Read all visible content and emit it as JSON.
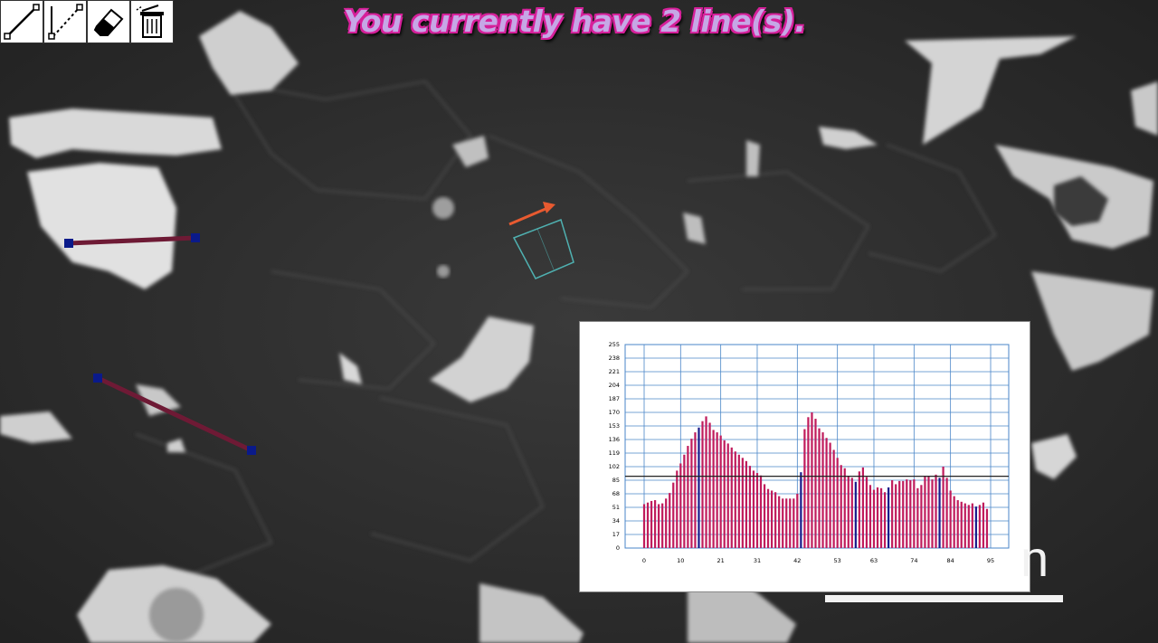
{
  "status_message": "You currently have 2 line(s).",
  "scale_bar": {
    "unit_text": "n"
  },
  "toolbar": {
    "tools": [
      {
        "name": "draw-line-tool",
        "icon": "line-icon"
      },
      {
        "name": "draw-dotted-line-tool",
        "icon": "dotted-line-icon"
      },
      {
        "name": "eraser-tool",
        "icon": "eraser-icon"
      },
      {
        "name": "delete-all-tool",
        "icon": "trash-icon"
      }
    ]
  },
  "colors": {
    "line": "#6e1a35",
    "endpoint": "#0a1a8a",
    "arrow": "#e85a30",
    "roi": "#4fb0b0",
    "bar_main": "#c01c5c",
    "bar_alt": "#1a1a8a",
    "grid": "#4a86c8"
  },
  "chart_data": {
    "type": "bar",
    "title": "",
    "xlabel": "",
    "ylabel": "",
    "ylim": [
      0,
      255
    ],
    "yticks": [
      0,
      17,
      34,
      51,
      68,
      85,
      102,
      119,
      136,
      153,
      170,
      187,
      204,
      221,
      238,
      255
    ],
    "xticks": [
      0,
      10,
      21,
      31,
      42,
      53,
      63,
      74,
      84,
      95
    ],
    "xlim": [
      0,
      95
    ],
    "threshold": 90,
    "dark_bars_at": [
      15,
      43,
      58,
      67,
      81,
      91
    ],
    "values": [
      55,
      57,
      59,
      60,
      55,
      56,
      62,
      69,
      82,
      97,
      106,
      117,
      128,
      137,
      145,
      151,
      159,
      165,
      157,
      148,
      145,
      141,
      135,
      131,
      126,
      121,
      117,
      113,
      109,
      103,
      97,
      94,
      91,
      80,
      74,
      72,
      70,
      65,
      62,
      62,
      62,
      62,
      68,
      95,
      149,
      164,
      170,
      162,
      150,
      145,
      138,
      132,
      123,
      113,
      104,
      100,
      90,
      88,
      83,
      96,
      101,
      89,
      79,
      73,
      76,
      75,
      70,
      76,
      85,
      80,
      84,
      84,
      86,
      85,
      86,
      75,
      79,
      90,
      90,
      86,
      92,
      88,
      102,
      88,
      72,
      65,
      60,
      58,
      56,
      54,
      56,
      52,
      54,
      57,
      49
    ]
  }
}
